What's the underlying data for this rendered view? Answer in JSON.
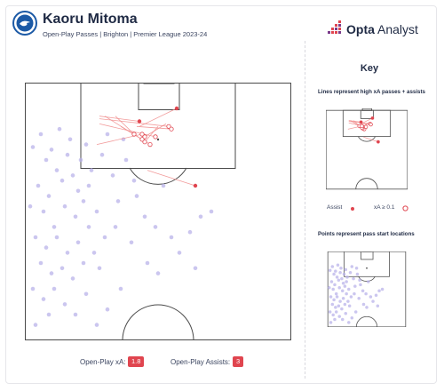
{
  "header": {
    "player_name": "Kaoru Mitoma",
    "subtitle": "Open-Play Passes | Brighton | Premier League 2023-24",
    "crest_icon": "brighton-crest-icon"
  },
  "brand": {
    "name_bold": "Opta",
    "name_rest": " Analyst",
    "logo_icon": "opta-dots-logo-icon"
  },
  "colors": {
    "line": "#f08a8a",
    "assist": "#e0454f",
    "xa_marker": "#e0454f",
    "start_point": "#b9b3ea",
    "pitch_line": "#4a4a4a",
    "badge": "#e0454f"
  },
  "key": {
    "title": "Key",
    "lines_note": "Lines represent high xA passes + assists",
    "assist_label": "Assist",
    "xa_label": "xA ≥ 0.1",
    "points_note": "Points represent pass start locations"
  },
  "stats": {
    "xa_label": "Open-Play xA:",
    "xa_value": "1.8",
    "assists_label": "Open-Play Assists:",
    "assists_value": "3"
  },
  "chart_data": {
    "type": "scatter",
    "units": "pitch coordinates: x 0-100 across the pitch width (left to right), y 0-100 from opponent goal line toward halfway line",
    "title": "",
    "xlabel": "",
    "ylabel": "",
    "xlim": [
      0,
      100
    ],
    "ylim": [
      0,
      100
    ],
    "grid": false,
    "legend_position": "right",
    "high_value_passes": [
      {
        "type": "assist",
        "start": [
          28,
          13
        ],
        "end": [
          43,
          15
        ]
      },
      {
        "type": "assist",
        "start": [
          43,
          17
        ],
        "end": [
          57,
          10
        ]
      },
      {
        "type": "assist",
        "start": [
          46,
          34
        ],
        "end": [
          64,
          40
        ]
      },
      {
        "type": "xa",
        "start": [
          28,
          14
        ],
        "end": [
          54,
          17
        ]
      },
      {
        "type": "xa",
        "start": [
          34,
          13
        ],
        "end": [
          41,
          20
        ]
      },
      {
        "type": "xa",
        "start": [
          30,
          13
        ],
        "end": [
          47,
          24
        ]
      },
      {
        "type": "xa",
        "start": [
          42,
          17
        ],
        "end": [
          55,
          18
        ]
      },
      {
        "type": "xa",
        "start": [
          50,
          17
        ],
        "end": [
          45,
          23
        ]
      },
      {
        "type": "xa",
        "start": [
          53,
          16
        ],
        "end": [
          45,
          21
        ]
      },
      {
        "type": "xa",
        "start": [
          36,
          17
        ],
        "end": [
          44,
          22
        ]
      },
      {
        "type": "xa",
        "start": [
          28,
          16
        ],
        "end": [
          49,
          21
        ]
      },
      {
        "type": "xa",
        "start": [
          27,
          24
        ],
        "end": [
          44,
          20
        ]
      }
    ],
    "pass_starts": [
      [
        3,
        25
      ],
      [
        6,
        20
      ],
      [
        8,
        30
      ],
      [
        10,
        26
      ],
      [
        12,
        34
      ],
      [
        5,
        40
      ],
      [
        9,
        44
      ],
      [
        14,
        38
      ],
      [
        16,
        28
      ],
      [
        18,
        36
      ],
      [
        20,
        42
      ],
      [
        7,
        50
      ],
      [
        11,
        56
      ],
      [
        15,
        48
      ],
      [
        19,
        52
      ],
      [
        22,
        46
      ],
      [
        24,
        40
      ],
      [
        4,
        60
      ],
      [
        8,
        64
      ],
      [
        12,
        60
      ],
      [
        16,
        66
      ],
      [
        20,
        62
      ],
      [
        24,
        56
      ],
      [
        27,
        50
      ],
      [
        6,
        70
      ],
      [
        10,
        74
      ],
      [
        14,
        72
      ],
      [
        18,
        76
      ],
      [
        22,
        70
      ],
      [
        26,
        66
      ],
      [
        3,
        80
      ],
      [
        7,
        84
      ],
      [
        11,
        80
      ],
      [
        15,
        86
      ],
      [
        30,
        60
      ],
      [
        34,
        56
      ],
      [
        28,
        72
      ],
      [
        36,
        80
      ],
      [
        13,
        18
      ],
      [
        17,
        22
      ],
      [
        21,
        30
      ],
      [
        25,
        34
      ],
      [
        29,
        28
      ],
      [
        33,
        36
      ],
      [
        38,
        30
      ],
      [
        42,
        44
      ],
      [
        40,
        62
      ],
      [
        46,
        70
      ],
      [
        50,
        74
      ],
      [
        55,
        60
      ],
      [
        62,
        58
      ],
      [
        58,
        66
      ],
      [
        66,
        52
      ],
      [
        70,
        50
      ],
      [
        64,
        72
      ],
      [
        9,
        90
      ],
      [
        4,
        94
      ],
      [
        23,
        82
      ],
      [
        31,
        88
      ],
      [
        45,
        52
      ],
      [
        52,
        40
      ],
      [
        35,
        46
      ],
      [
        2,
        48
      ],
      [
        19,
        90
      ],
      [
        37,
        22
      ],
      [
        23,
        24
      ],
      [
        31,
        20
      ],
      [
        41,
        38
      ],
      [
        49,
        56
      ],
      [
        27,
        94
      ]
    ]
  }
}
